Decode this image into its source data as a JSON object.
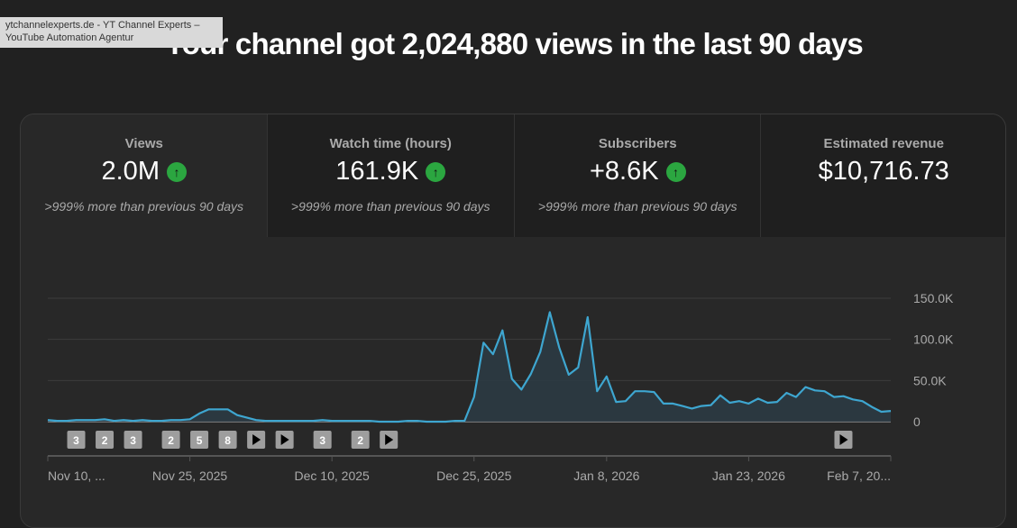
{
  "tooltip": {
    "line1": "ytchannelexperts.de - YT Channel Experts –",
    "line2": "YouTube Automation Agentur"
  },
  "title": "Your channel got 2,024,880 views in the last 90 days",
  "tabs": [
    {
      "label": "Views",
      "value": "2.0M",
      "trend": "up",
      "compare": ">999% more than previous 90 days"
    },
    {
      "label": "Watch time (hours)",
      "value": "161.9K",
      "trend": "up",
      "compare": ">999% more than previous 90 days"
    },
    {
      "label": "Subscribers",
      "value": "+8.6K",
      "trend": "up",
      "compare": ">999% more than previous 90 days"
    },
    {
      "label": "Estimated revenue",
      "value": "$10,716.73",
      "trend": "",
      "compare": ""
    }
  ],
  "colors": {
    "line": "#3ea6d0",
    "up": "#2ba640",
    "active_tab": "#282828"
  },
  "chart_data": {
    "type": "area",
    "start_date": "Nov 10, 2025",
    "ylim": [
      0,
      150000
    ],
    "yticks": [
      {
        "v": 150000,
        "label": "150.0K"
      },
      {
        "v": 100000,
        "label": "100.0K"
      },
      {
        "v": 50000,
        "label": "50.0K"
      },
      {
        "v": 0,
        "label": "0"
      }
    ],
    "xticks": [
      {
        "i": 0,
        "label": "Nov 10, ..."
      },
      {
        "i": 15,
        "label": "Nov 25, 2025"
      },
      {
        "i": 30,
        "label": "Dec 10, 2025"
      },
      {
        "i": 45,
        "label": "Dec 25, 2025"
      },
      {
        "i": 59,
        "label": "Jan 8, 2026"
      },
      {
        "i": 74,
        "label": "Jan 23, 2026"
      },
      {
        "i": 89,
        "label": "Feb 7, 20..."
      }
    ],
    "values": [
      2000,
      1000,
      1000,
      2000,
      2000,
      2000,
      3000,
      1000,
      2000,
      1000,
      2000,
      1000,
      1000,
      2000,
      2000,
      3000,
      10000,
      15000,
      15000,
      15000,
      8000,
      5000,
      2000,
      1000,
      1000,
      1000,
      1000,
      1000,
      1000,
      2000,
      1000,
      1000,
      1000,
      1000,
      1000,
      0,
      0,
      0,
      1000,
      1000,
      0,
      0,
      0,
      1000,
      1000,
      30000,
      96000,
      82000,
      111000,
      52000,
      39000,
      58000,
      85000,
      133000,
      90000,
      57000,
      66000,
      127000,
      37000,
      55000,
      24000,
      25000,
      37000,
      37000,
      36000,
      22000,
      22000,
      19000,
      16000,
      19000,
      20000,
      32000,
      23000,
      25000,
      22000,
      28000,
      23000,
      24000,
      35000,
      30000,
      42000,
      38000,
      37000,
      30000,
      31000,
      27000,
      25000,
      18000,
      12000,
      13000
    ],
    "markers": [
      {
        "i": 3,
        "label": "3"
      },
      {
        "i": 6,
        "label": "2"
      },
      {
        "i": 9,
        "label": "3"
      },
      {
        "i": 13,
        "label": "2"
      },
      {
        "i": 16,
        "label": "5"
      },
      {
        "i": 19,
        "label": "8"
      },
      {
        "i": 22,
        "label": "▶"
      },
      {
        "i": 25,
        "label": "▶"
      },
      {
        "i": 29,
        "label": "3"
      },
      {
        "i": 33,
        "label": "2"
      },
      {
        "i": 36,
        "label": "▶"
      },
      {
        "i": 84,
        "label": "▶"
      }
    ]
  }
}
